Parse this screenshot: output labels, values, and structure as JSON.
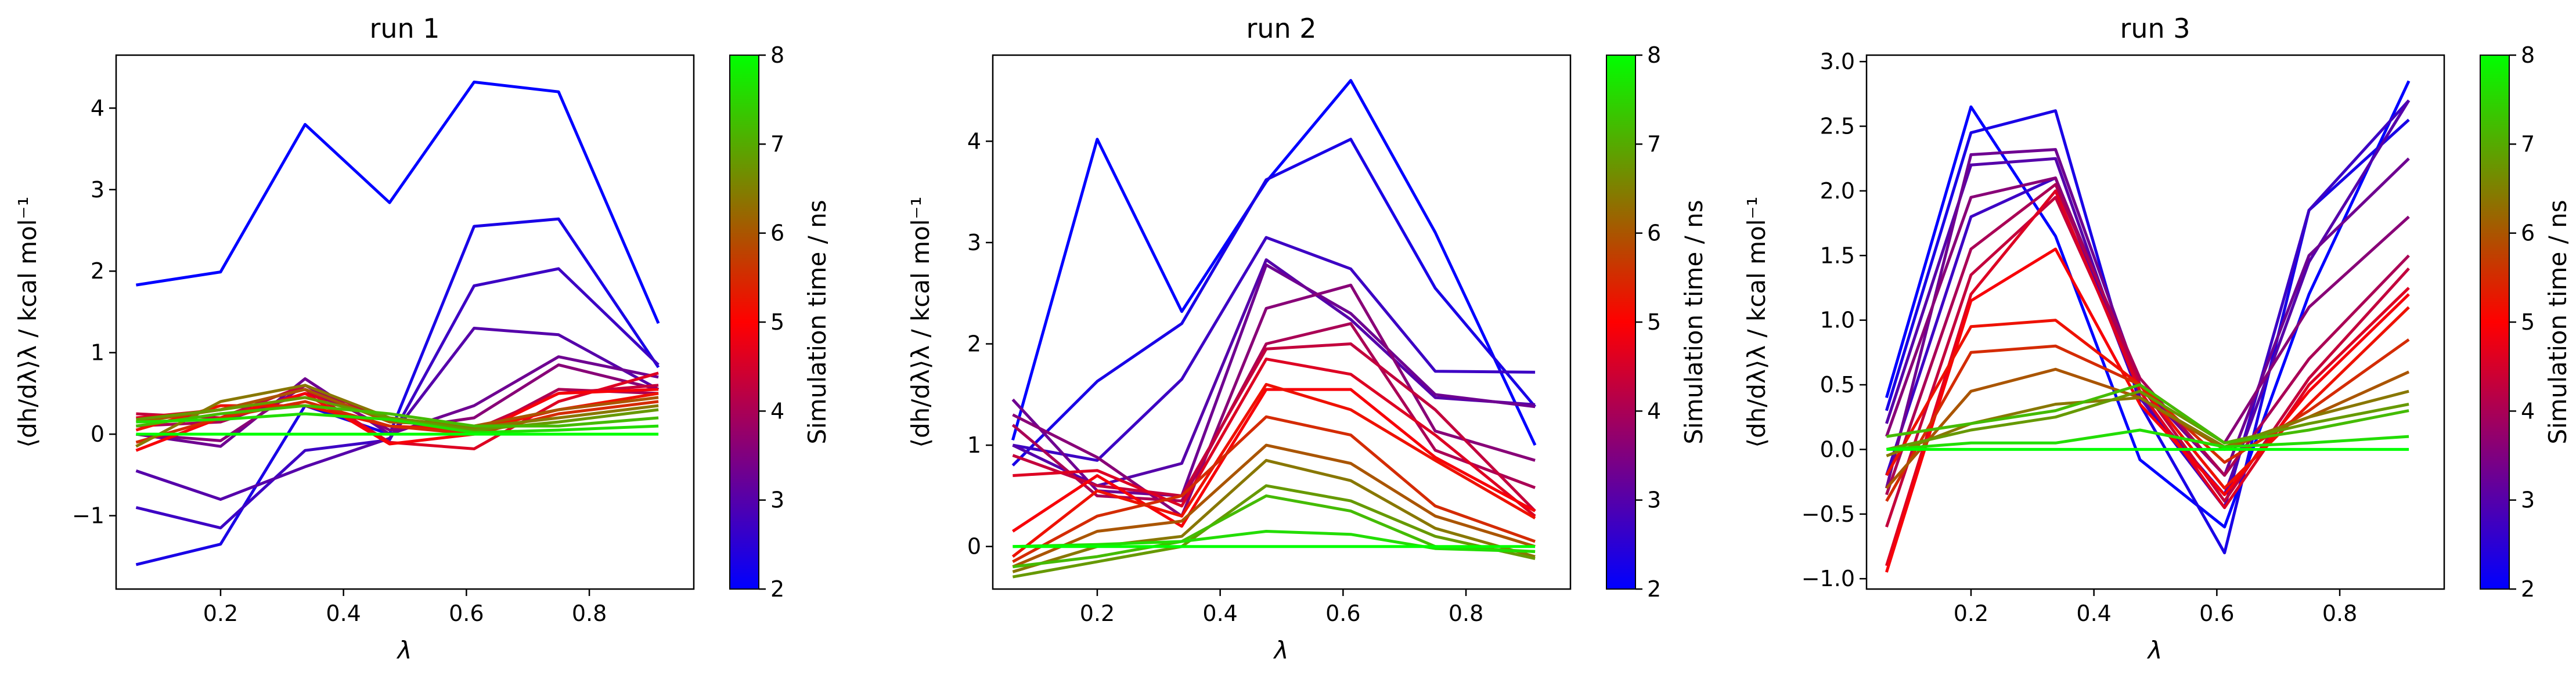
{
  "figure": {
    "colormap": [
      "#0000ff",
      "#ff0000",
      "#00ff00"
    ],
    "colorbar": {
      "label": "Simulation time / ns",
      "range": [
        2,
        8
      ],
      "ticks": [
        2,
        3,
        4,
        5,
        6,
        7,
        8
      ]
    }
  },
  "chart_data": [
    {
      "type": "line",
      "title": "run 1",
      "xlabel": "λ",
      "ylabel": "⟨dh/dλ⟩λ / kcal mol⁻¹",
      "xlim": [
        0.03,
        0.97
      ],
      "ylim": [
        -1.9,
        4.65
      ],
      "xticks": [
        0.2,
        0.4,
        0.6,
        0.8
      ],
      "yticks": [
        -1,
        0,
        1,
        2,
        3,
        4
      ],
      "x": [
        0.0625,
        0.2,
        0.3375,
        0.475,
        0.6125,
        0.75,
        0.9125
      ],
      "series": [
        {
          "time": 2.0,
          "values": [
            1.83,
            1.99,
            3.8,
            2.84,
            4.32,
            4.2,
            1.36
          ]
        },
        {
          "time": 2.3,
          "values": [
            -1.6,
            -1.35,
            0.35,
            0.0,
            2.55,
            2.64,
            0.82
          ]
        },
        {
          "time": 2.7,
          "values": [
            -0.9,
            -1.15,
            -0.2,
            -0.07,
            1.82,
            2.03,
            0.85
          ]
        },
        {
          "time": 3.0,
          "values": [
            -0.45,
            -0.8,
            -0.4,
            -0.05,
            1.3,
            1.22,
            0.55
          ]
        },
        {
          "time": 3.3,
          "values": [
            0.0,
            -0.15,
            0.68,
            0.0,
            0.35,
            0.95,
            0.7
          ]
        },
        {
          "time": 3.6,
          "values": [
            0.0,
            -0.08,
            0.6,
            0.05,
            0.2,
            0.85,
            0.55
          ]
        },
        {
          "time": 4.0,
          "values": [
            0.1,
            0.15,
            0.5,
            0.2,
            0.0,
            0.55,
            0.5
          ]
        },
        {
          "time": 4.3,
          "values": [
            0.25,
            0.2,
            0.6,
            0.18,
            0.05,
            0.5,
            0.6
          ]
        },
        {
          "time": 4.6,
          "values": [
            0.2,
            0.3,
            0.55,
            -0.1,
            -0.18,
            0.4,
            0.75
          ]
        },
        {
          "time": 4.9,
          "values": [
            -0.2,
            0.2,
            0.5,
            -0.12,
            0.0,
            0.5,
            0.55
          ]
        },
        {
          "time": 5.2,
          "values": [
            0.05,
            0.35,
            0.35,
            0.1,
            0.05,
            0.3,
            0.5
          ]
        },
        {
          "time": 5.5,
          "values": [
            -0.1,
            0.2,
            0.4,
            0.1,
            0.0,
            0.25,
            0.4
          ]
        },
        {
          "time": 6.0,
          "values": [
            0.15,
            0.3,
            0.55,
            0.15,
            0.1,
            0.3,
            0.45
          ]
        },
        {
          "time": 6.4,
          "values": [
            -0.15,
            0.4,
            0.6,
            0.2,
            0.08,
            0.2,
            0.35
          ]
        },
        {
          "time": 6.8,
          "values": [
            0.18,
            0.3,
            0.45,
            0.2,
            0.05,
            0.15,
            0.3
          ]
        },
        {
          "time": 7.2,
          "values": [
            0.1,
            0.25,
            0.35,
            0.25,
            0.1,
            0.1,
            0.2
          ]
        },
        {
          "time": 7.6,
          "values": [
            0.15,
            0.18,
            0.25,
            0.18,
            0.02,
            0.05,
            0.1
          ]
        },
        {
          "time": 8.0,
          "values": [
            0.0,
            0.0,
            0.0,
            0.0,
            0.0,
            0.0,
            0.0
          ]
        }
      ]
    },
    {
      "type": "line",
      "title": "run 2",
      "xlabel": "λ",
      "ylabel": "⟨dh/dλ⟩λ / kcal mol⁻¹",
      "xlim": [
        0.03,
        0.97
      ],
      "ylim": [
        -0.42,
        4.85
      ],
      "xticks": [
        0.2,
        0.4,
        0.6,
        0.8
      ],
      "yticks": [
        0,
        1,
        2,
        3,
        4
      ],
      "x": [
        0.0625,
        0.2,
        0.3375,
        0.475,
        0.6125,
        0.75,
        0.9125
      ],
      "series": [
        {
          "time": 2.0,
          "values": [
            1.05,
            4.02,
            2.32,
            3.6,
            4.6,
            3.1,
            1.0
          ]
        },
        {
          "time": 2.3,
          "values": [
            0.8,
            1.63,
            2.2,
            3.62,
            4.02,
            2.55,
            1.38
          ]
        },
        {
          "time": 2.7,
          "values": [
            1.0,
            0.85,
            1.65,
            3.05,
            2.74,
            1.73,
            1.72
          ]
        },
        {
          "time": 3.0,
          "values": [
            1.0,
            0.6,
            0.82,
            2.83,
            2.24,
            1.47,
            1.4
          ]
        },
        {
          "time": 3.3,
          "values": [
            1.45,
            0.55,
            0.5,
            2.78,
            2.3,
            1.5,
            1.38
          ]
        },
        {
          "time": 3.6,
          "values": [
            1.3,
            0.88,
            0.3,
            2.35,
            2.58,
            1.14,
            0.85
          ]
        },
        {
          "time": 4.0,
          "values": [
            1.2,
            0.5,
            0.45,
            2.0,
            2.2,
            0.95,
            0.58
          ]
        },
        {
          "time": 4.3,
          "values": [
            0.9,
            0.6,
            0.5,
            1.95,
            2.0,
            1.35,
            0.35
          ]
        },
        {
          "time": 4.6,
          "values": [
            0.7,
            0.75,
            0.4,
            1.85,
            1.7,
            1.1,
            0.3
          ]
        },
        {
          "time": 4.9,
          "values": [
            0.15,
            0.7,
            0.2,
            1.55,
            1.55,
            0.88,
            0.35
          ]
        },
        {
          "time": 5.2,
          "values": [
            -0.1,
            0.55,
            0.3,
            1.6,
            1.35,
            0.85,
            0.28
          ]
        },
        {
          "time": 5.5,
          "values": [
            -0.15,
            0.3,
            0.5,
            1.28,
            1.1,
            0.4,
            0.05
          ]
        },
        {
          "time": 6.0,
          "values": [
            -0.2,
            0.15,
            0.25,
            1.0,
            0.82,
            0.3,
            0.0
          ]
        },
        {
          "time": 6.4,
          "values": [
            -0.25,
            0.0,
            0.1,
            0.85,
            0.65,
            0.18,
            -0.1
          ]
        },
        {
          "time": 6.8,
          "values": [
            -0.3,
            -0.15,
            0.0,
            0.6,
            0.45,
            0.1,
            -0.12
          ]
        },
        {
          "time": 7.2,
          "values": [
            -0.2,
            -0.1,
            0.05,
            0.5,
            0.35,
            0.0,
            -0.05
          ]
        },
        {
          "time": 7.6,
          "values": [
            0.0,
            0.02,
            0.05,
            0.15,
            0.12,
            -0.02,
            -0.05
          ]
        },
        {
          "time": 8.0,
          "values": [
            0.0,
            0.0,
            0.0,
            0.0,
            0.0,
            0.0,
            0.0
          ]
        }
      ]
    },
    {
      "type": "line",
      "title": "run 3",
      "xlabel": "λ",
      "ylabel": "⟨dh/dλ⟩λ / kcal mol⁻¹",
      "xlim": [
        0.03,
        0.97
      ],
      "ylim": [
        -1.08,
        3.05
      ],
      "xticks": [
        0.2,
        0.4,
        0.6,
        0.8
      ],
      "yticks": [
        -1.0,
        -0.5,
        0.0,
        0.5,
        1.0,
        1.5,
        2.0,
        2.5,
        3.0
      ],
      "x": [
        0.0625,
        0.2,
        0.3375,
        0.475,
        0.6125,
        0.75,
        0.9125
      ],
      "series": [
        {
          "time": 2.0,
          "values": [
            0.4,
            2.65,
            1.65,
            -0.08,
            -0.6,
            1.2,
            2.85
          ]
        },
        {
          "time": 2.3,
          "values": [
            0.3,
            2.45,
            2.62,
            0.35,
            -0.8,
            1.85,
            2.55
          ]
        },
        {
          "time": 2.7,
          "values": [
            -0.2,
            1.8,
            2.1,
            0.4,
            -0.45,
            1.85,
            2.7
          ]
        },
        {
          "time": 3.0,
          "values": [
            0.2,
            2.2,
            2.25,
            0.4,
            -0.35,
            1.45,
            2.7
          ]
        },
        {
          "time": 3.3,
          "values": [
            -0.3,
            2.28,
            2.32,
            0.5,
            -0.2,
            1.5,
            2.25
          ]
        },
        {
          "time": 3.6,
          "values": [
            0.1,
            1.95,
            2.1,
            0.5,
            0.05,
            1.1,
            1.8
          ]
        },
        {
          "time": 4.0,
          "values": [
            -0.35,
            1.55,
            2.05,
            0.55,
            -0.2,
            0.7,
            1.5
          ]
        },
        {
          "time": 4.3,
          "values": [
            -0.6,
            1.35,
            1.95,
            0.5,
            -0.4,
            0.55,
            1.4
          ]
        },
        {
          "time": 4.6,
          "values": [
            -0.9,
            1.2,
            2.0,
            0.45,
            -0.45,
            0.5,
            1.25
          ]
        },
        {
          "time": 4.9,
          "values": [
            -0.95,
            1.15,
            1.55,
            0.35,
            -0.35,
            0.45,
            1.2
          ]
        },
        {
          "time": 5.2,
          "values": [
            -0.2,
            0.95,
            1.0,
            0.5,
            -0.3,
            0.35,
            1.1
          ]
        },
        {
          "time": 5.5,
          "values": [
            -0.4,
            0.75,
            0.8,
            0.5,
            -0.1,
            0.3,
            0.85
          ]
        },
        {
          "time": 6.0,
          "values": [
            -0.3,
            0.45,
            0.62,
            0.4,
            0.0,
            0.25,
            0.6
          ]
        },
        {
          "time": 6.4,
          "values": [
            -0.05,
            0.2,
            0.35,
            0.4,
            0.02,
            0.25,
            0.45
          ]
        },
        {
          "time": 6.8,
          "values": [
            0.0,
            0.15,
            0.25,
            0.45,
            0.05,
            0.2,
            0.35
          ]
        },
        {
          "time": 7.2,
          "values": [
            0.1,
            0.2,
            0.3,
            0.5,
            0.05,
            0.15,
            0.3
          ]
        },
        {
          "time": 7.6,
          "values": [
            0.0,
            0.05,
            0.05,
            0.15,
            0.02,
            0.05,
            0.1
          ]
        },
        {
          "time": 8.0,
          "values": [
            0.0,
            0.0,
            0.0,
            0.0,
            0.0,
            0.0,
            0.0
          ]
        }
      ]
    }
  ]
}
